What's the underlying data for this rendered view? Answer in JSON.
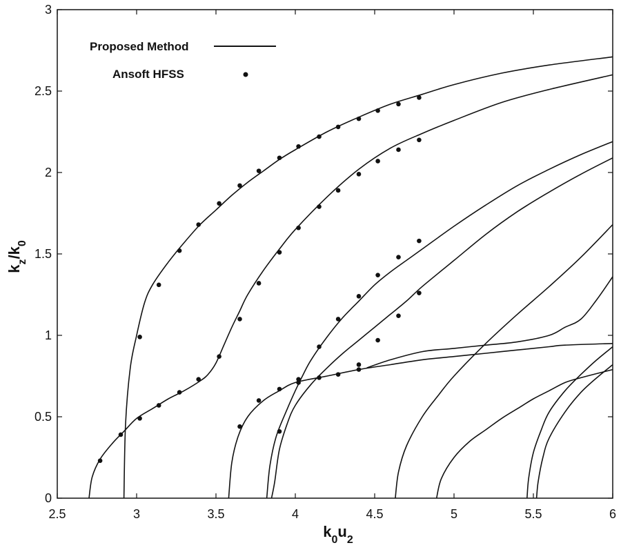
{
  "chart_data": {
    "type": "line",
    "title": "",
    "xlabel": "k0u2",
    "ylabel": "kz/k0",
    "xlim": [
      2.5,
      6
    ],
    "ylim": [
      0,
      3
    ],
    "xticks": [
      "2.5",
      "3",
      "3.5",
      "4",
      "4.5",
      "5",
      "5.5",
      "6"
    ],
    "yticks": [
      "0",
      "0.5",
      "1",
      "1.5",
      "2",
      "2.5",
      "3"
    ],
    "grid": false,
    "legend": {
      "placement": "top-left",
      "entries": [
        {
          "label": "Proposed Method",
          "marker": "line"
        },
        {
          "label": "Ansoft HFSS",
          "marker": "dot"
        }
      ]
    },
    "series": [
      {
        "kind": "line",
        "points": [
          [
            2.92,
            0
          ],
          [
            2.93,
            0.45
          ],
          [
            2.96,
            0.8
          ],
          [
            3.0,
            1.0
          ],
          [
            3.05,
            1.2
          ],
          [
            3.1,
            1.31
          ],
          [
            3.2,
            1.45
          ],
          [
            3.3,
            1.57
          ],
          [
            3.4,
            1.68
          ],
          [
            3.5,
            1.77
          ],
          [
            3.6,
            1.86
          ],
          [
            3.7,
            1.94
          ],
          [
            3.8,
            2.01
          ],
          [
            3.9,
            2.08
          ],
          [
            4.0,
            2.14
          ],
          [
            4.2,
            2.25
          ],
          [
            4.4,
            2.34
          ],
          [
            4.6,
            2.42
          ],
          [
            4.8,
            2.48
          ],
          [
            5.0,
            2.54
          ],
          [
            5.3,
            2.61
          ],
          [
            5.6,
            2.66
          ],
          [
            6.0,
            2.71
          ]
        ]
      },
      {
        "kind": "line",
        "points": [
          [
            2.7,
            0
          ],
          [
            2.72,
            0.13
          ],
          [
            2.77,
            0.24
          ],
          [
            2.85,
            0.34
          ],
          [
            2.92,
            0.41
          ],
          [
            3.0,
            0.49
          ],
          [
            3.1,
            0.55
          ],
          [
            3.2,
            0.61
          ],
          [
            3.3,
            0.66
          ],
          [
            3.4,
            0.72
          ],
          [
            3.45,
            0.76
          ],
          [
            3.5,
            0.83
          ],
          [
            3.55,
            0.94
          ],
          [
            3.6,
            1.05
          ],
          [
            3.65,
            1.15
          ],
          [
            3.7,
            1.25
          ],
          [
            3.8,
            1.4
          ],
          [
            3.9,
            1.53
          ],
          [
            4.0,
            1.65
          ],
          [
            4.2,
            1.85
          ],
          [
            4.4,
            2.02
          ],
          [
            4.6,
            2.15
          ],
          [
            4.8,
            2.24
          ],
          [
            5.0,
            2.32
          ],
          [
            5.3,
            2.43
          ],
          [
            5.6,
            2.51
          ],
          [
            6.0,
            2.6
          ]
        ]
      },
      {
        "kind": "line",
        "points": [
          [
            3.58,
            0
          ],
          [
            3.6,
            0.22
          ],
          [
            3.64,
            0.38
          ],
          [
            3.7,
            0.5
          ],
          [
            3.8,
            0.6
          ],
          [
            3.9,
            0.66
          ],
          [
            4.0,
            0.71
          ],
          [
            4.2,
            0.75
          ],
          [
            4.4,
            0.79
          ],
          [
            4.6,
            0.82
          ],
          [
            4.8,
            0.85
          ],
          [
            5.0,
            0.87
          ],
          [
            5.2,
            0.89
          ],
          [
            5.4,
            0.91
          ],
          [
            5.6,
            0.93
          ],
          [
            5.7,
            0.94
          ],
          [
            6.0,
            0.95
          ]
        ]
      },
      {
        "kind": "line",
        "points": [
          [
            3.82,
            0
          ],
          [
            3.84,
            0.2
          ],
          [
            3.88,
            0.38
          ],
          [
            3.95,
            0.55
          ],
          [
            4.0,
            0.66
          ],
          [
            4.05,
            0.76
          ],
          [
            4.1,
            0.85
          ],
          [
            4.2,
            0.99
          ],
          [
            4.3,
            1.11
          ],
          [
            4.4,
            1.21
          ],
          [
            4.5,
            1.31
          ],
          [
            4.6,
            1.39
          ],
          [
            4.7,
            1.46
          ],
          [
            4.8,
            1.53
          ],
          [
            5.0,
            1.67
          ],
          [
            5.2,
            1.8
          ],
          [
            5.4,
            1.92
          ],
          [
            5.6,
            2.02
          ],
          [
            5.8,
            2.11
          ],
          [
            6.0,
            2.19
          ]
        ]
      },
      {
        "kind": "line",
        "points": [
          [
            3.85,
            0
          ],
          [
            3.87,
            0.1
          ],
          [
            3.9,
            0.3
          ],
          [
            3.95,
            0.46
          ],
          [
            4.0,
            0.57
          ],
          [
            4.1,
            0.7
          ],
          [
            4.2,
            0.8
          ],
          [
            4.3,
            0.89
          ],
          [
            4.4,
            0.97
          ],
          [
            4.5,
            1.05
          ],
          [
            4.6,
            1.13
          ],
          [
            4.7,
            1.21
          ],
          [
            4.8,
            1.3
          ],
          [
            5.0,
            1.46
          ],
          [
            5.2,
            1.62
          ],
          [
            5.4,
            1.76
          ],
          [
            5.6,
            1.88
          ],
          [
            5.8,
            1.99
          ],
          [
            6.0,
            2.09
          ]
        ]
      },
      {
        "kind": "line",
        "points": [
          [
            4.63,
            0
          ],
          [
            4.65,
            0.16
          ],
          [
            4.7,
            0.32
          ],
          [
            4.8,
            0.5
          ],
          [
            4.9,
            0.63
          ],
          [
            5.0,
            0.75
          ],
          [
            5.2,
            0.95
          ],
          [
            5.4,
            1.13
          ],
          [
            5.6,
            1.3
          ],
          [
            5.8,
            1.48
          ],
          [
            6.0,
            1.68
          ]
        ]
      },
      {
        "kind": "line",
        "points": [
          [
            4.89,
            0
          ],
          [
            4.92,
            0.12
          ],
          [
            5.0,
            0.25
          ],
          [
            5.1,
            0.35
          ],
          [
            5.2,
            0.42
          ],
          [
            5.3,
            0.49
          ],
          [
            5.4,
            0.55
          ],
          [
            5.5,
            0.61
          ],
          [
            5.6,
            0.66
          ],
          [
            5.7,
            0.71
          ],
          [
            5.8,
            0.74
          ],
          [
            6.0,
            0.79
          ]
        ]
      },
      {
        "kind": "line",
        "points": [
          [
            5.46,
            0
          ],
          [
            5.47,
            0.12
          ],
          [
            5.5,
            0.28
          ],
          [
            5.55,
            0.42
          ],
          [
            5.6,
            0.53
          ],
          [
            5.7,
            0.66
          ],
          [
            5.8,
            0.76
          ],
          [
            5.9,
            0.85
          ],
          [
            6.0,
            0.93
          ]
        ]
      },
      {
        "kind": "line",
        "points": [
          [
            5.52,
            0
          ],
          [
            5.53,
            0.1
          ],
          [
            5.56,
            0.25
          ],
          [
            5.6,
            0.37
          ],
          [
            5.7,
            0.53
          ],
          [
            5.8,
            0.65
          ],
          [
            5.9,
            0.74
          ],
          [
            6.0,
            0.82
          ]
        ]
      },
      {
        "kind": "line",
        "points": [
          [
            4.45,
            0.8
          ],
          [
            4.6,
            0.85
          ],
          [
            4.8,
            0.9
          ],
          [
            5.0,
            0.92
          ],
          [
            5.2,
            0.94
          ],
          [
            5.4,
            0.96
          ],
          [
            5.6,
            1.0
          ],
          [
            5.7,
            1.05
          ],
          [
            5.8,
            1.1
          ],
          [
            5.9,
            1.22
          ],
          [
            6.0,
            1.36
          ]
        ]
      },
      {
        "kind": "scatter",
        "points": [
          [
            3.02,
            0.99
          ],
          [
            3.14,
            1.31
          ],
          [
            3.27,
            1.52
          ],
          [
            3.39,
            1.68
          ],
          [
            3.52,
            1.81
          ],
          [
            3.65,
            1.92
          ],
          [
            3.77,
            2.01
          ],
          [
            3.9,
            2.09
          ],
          [
            4.02,
            2.16
          ],
          [
            4.15,
            2.22
          ],
          [
            4.27,
            2.28
          ],
          [
            4.4,
            2.33
          ],
          [
            4.52,
            2.38
          ],
          [
            4.65,
            2.42
          ],
          [
            4.78,
            2.46
          ]
        ]
      },
      {
        "kind": "scatter",
        "points": [
          [
            2.77,
            0.23
          ],
          [
            2.9,
            0.39
          ],
          [
            3.02,
            0.49
          ],
          [
            3.14,
            0.57
          ],
          [
            3.27,
            0.65
          ],
          [
            3.39,
            0.73
          ],
          [
            3.52,
            0.87
          ],
          [
            3.65,
            1.1
          ],
          [
            3.77,
            1.32
          ],
          [
            3.9,
            1.51
          ],
          [
            4.02,
            1.66
          ],
          [
            4.15,
            1.79
          ],
          [
            4.27,
            1.89
          ],
          [
            4.4,
            1.99
          ],
          [
            4.52,
            2.07
          ],
          [
            4.65,
            2.14
          ],
          [
            4.78,
            2.2
          ]
        ]
      },
      {
        "kind": "scatter",
        "points": [
          [
            3.65,
            0.44
          ],
          [
            3.77,
            0.6
          ],
          [
            3.9,
            0.67
          ],
          [
            4.02,
            0.71
          ],
          [
            4.15,
            0.74
          ],
          [
            4.27,
            0.76
          ],
          [
            4.4,
            0.79
          ]
        ]
      },
      {
        "kind": "scatter",
        "points": [
          [
            3.9,
            0.41
          ],
          [
            4.02,
            0.73
          ],
          [
            4.15,
            0.93
          ],
          [
            4.27,
            1.1
          ],
          [
            4.4,
            1.24
          ],
          [
            4.52,
            1.37
          ],
          [
            4.65,
            1.48
          ],
          [
            4.78,
            1.58
          ]
        ]
      },
      {
        "kind": "scatter",
        "points": [
          [
            4.4,
            0.82
          ],
          [
            4.52,
            0.97
          ],
          [
            4.65,
            1.12
          ],
          [
            4.78,
            1.26
          ]
        ]
      }
    ]
  }
}
